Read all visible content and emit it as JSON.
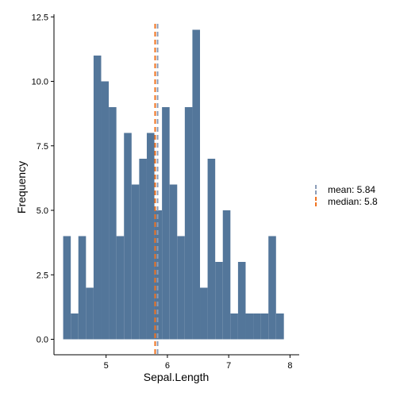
{
  "chart_data": {
    "type": "bar",
    "subtype": "histogram",
    "xlabel": "Sepal.Length",
    "ylabel": "Frequency",
    "xlim": [
      4.15,
      8.15
    ],
    "ylim": [
      -0.6,
      12.6
    ],
    "x_ticks": [
      5,
      6,
      7,
      8
    ],
    "x_tick_labels": [
      "5",
      "6",
      "7",
      "8"
    ],
    "y_ticks": [
      0,
      2.5,
      5,
      7.5,
      10,
      12.5
    ],
    "y_tick_labels": [
      "0.0",
      "2.5",
      "5.0",
      "7.5",
      "10.0",
      "12.5"
    ],
    "bin_width": 0.124,
    "bin_starts": [
      4.3,
      4.424,
      4.548,
      4.672,
      4.796,
      4.92,
      5.044,
      5.168,
      5.292,
      5.416,
      5.54,
      5.664,
      5.788,
      5.912,
      6.036,
      6.16,
      6.284,
      6.408,
      6.532,
      6.656,
      6.78,
      6.904,
      7.028,
      7.152,
      7.276,
      7.4,
      7.524,
      7.648,
      7.772
    ],
    "values": [
      4,
      1,
      4,
      2,
      11,
      10,
      9,
      4,
      8,
      6,
      7,
      8,
      5,
      9,
      6,
      4,
      9,
      12,
      2,
      7,
      3,
      5,
      1,
      3,
      1,
      1,
      1,
      4,
      0
    ],
    "extra_bins": [
      {
        "start": 7.772,
        "end": 7.9,
        "value": 1
      }
    ],
    "bar_color": "#53769A",
    "grid": false,
    "legend_position": "right",
    "reference_lines": [
      {
        "label": "mean: 5.84",
        "value": 5.84,
        "color": "#8B9DB8",
        "style": "dashed"
      },
      {
        "label": "median: 5.8",
        "value": 5.8,
        "color": "#F07320",
        "style": "dashed"
      }
    ]
  }
}
